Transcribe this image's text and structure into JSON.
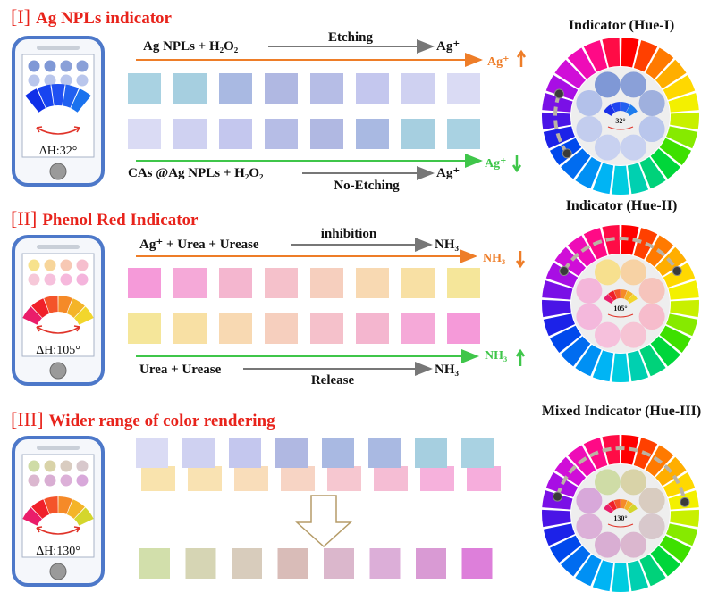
{
  "sections": [
    {
      "numeral": "[I]",
      "title": "Ag NPLs indicator",
      "phone_readout": "ΔH:32°",
      "phone_dot_colors": [
        "#7f98d6",
        "#7f98d6",
        "#8aa0d8",
        "#8aa0d8",
        "#b9c6ec",
        "#b9c6ec",
        "#b9c6ec",
        "#b9c6ec"
      ],
      "phone_fan_colors": [
        "#1030e8",
        "#1844f0",
        "#2050f2",
        "#2060f0",
        "#1a72ee"
      ],
      "top_reaction": {
        "left": "Ag NPLs + H₂O₂",
        "label": "Etching",
        "product": "Ag⁺",
        "side": "Ag⁺",
        "arrow_color": "#ee7d28"
      },
      "top_swatches": [
        "#a9d2e2",
        "#a6cfe0",
        "#a9b9e2",
        "#b0b8e2",
        "#b6bde6",
        "#c4c7ee",
        "#cfd1f1",
        "#dadbf4"
      ],
      "bottom_swatches": [
        "#dadbf4",
        "#cfd1f1",
        "#c4c7ee",
        "#b6bde6",
        "#b0b8e2",
        "#a9b9e2",
        "#a6cfe0",
        "#a9d2e2"
      ],
      "bottom_reaction": {
        "left": "CAs @Ag NPLs + H₂O₂",
        "label": "No-Etching",
        "product": "Ag⁺",
        "side": "Ag⁺",
        "arrow_color": "#3fc64a"
      }
    },
    {
      "numeral": "[II]",
      "title": "Phenol Red Indicator",
      "phone_readout": "ΔH:105°",
      "phone_dot_colors": [
        "#f7e28c",
        "#f7d59a",
        "#f7c8b4",
        "#f6bfce",
        "#f6c8d8",
        "#f6c0dc",
        "#f6b8dc",
        "#f4b4dc"
      ],
      "phone_fan_colors": [
        "#ea1d6a",
        "#f0202a",
        "#f4542a",
        "#f58a28",
        "#f4b428",
        "#f2d62c"
      ],
      "top_reaction": {
        "left": "Ag⁺ + Urea + Urease",
        "label": "inhibition",
        "product": "NH₃",
        "side": "NH₃",
        "arrow_color": "#ee7d28"
      },
      "top_swatches": [
        "#f59ad9",
        "#f5a9d8",
        "#f4b6cf",
        "#f5c1cb",
        "#f6cfbe",
        "#f8d9b2",
        "#f8e0a4",
        "#f5e69a"
      ],
      "bottom_swatches": [
        "#f5e69a",
        "#f8e0a4",
        "#f8d9b2",
        "#f6cfbe",
        "#f5c1cb",
        "#f4b6cf",
        "#f5a9d8",
        "#f59ad9"
      ],
      "bottom_reaction": {
        "left": "Urea + Urease",
        "label": "Release",
        "product": "NH₃",
        "side": "NH₃",
        "arrow_color": "#3fc64a"
      }
    },
    {
      "numeral": "[III]",
      "title": "Wider range of color rendering",
      "phone_readout": "ΔH:130°",
      "phone_dot_colors": [
        "#cfdca6",
        "#d9d3a8",
        "#d9ccc0",
        "#d8c8cc",
        "#dbb7cf",
        "#d9aed3",
        "#dcb0d8",
        "#d8a8da"
      ],
      "phone_fan_colors": [
        "#ea1d6a",
        "#f0202a",
        "#f4542a",
        "#f58a28",
        "#f4b428",
        "#d4d62c"
      ],
      "back_swatches": [
        "#dadbf4",
        "#cfd1f1",
        "#c4c7ee",
        "#b0b8e2",
        "#a9b9e2",
        "#a9b9e2",
        "#a6cfe0",
        "#a9d2e2"
      ],
      "front_swatches": [
        "#f8e0a4",
        "#f8dfaa",
        "#f8d9b2",
        "#f6cfbe",
        "#f5c1cb",
        "#f4b6cf",
        "#f5a9d8",
        "#f5a4d8"
      ],
      "mixed_swatches": [
        "#d2dfab",
        "#d6d5b4",
        "#d8ccbc",
        "#d9bcb8",
        "#dbb7cc",
        "#dcaed8",
        "#d99ad4",
        "#dd7fda"
      ]
    }
  ],
  "wheels": [
    {
      "title": "Indicator (Hue-I)",
      "angle_label": "32°",
      "inner_dot_colors": [
        "#7f98d6",
        "#8aa0d8",
        "#9fb0de",
        "#b9c6ec",
        "#c8d1f0",
        "#c8d1f0",
        "#c3cdee",
        "#b3c1ea"
      ],
      "fan_colors": [
        "#1a30e8",
        "#1e44f0",
        "#2460f0",
        "#1d7cee"
      ]
    },
    {
      "title": "Indicator (Hue-II)",
      "angle_label": "105°",
      "inner_dot_colors": [
        "#f7e08e",
        "#f7d2a4",
        "#f6c4bc",
        "#f6bccc",
        "#f6c4d4",
        "#f6c0dc",
        "#f4b8dc",
        "#f4b6da"
      ],
      "fan_colors": [
        "#ea1d6a",
        "#f0202a",
        "#f4542a",
        "#f58a28",
        "#f4b428",
        "#f2d62c"
      ]
    },
    {
      "title": "Mixed Indicator (Hue-III)",
      "angle_label": "130°",
      "inner_dot_colors": [
        "#cfdca6",
        "#d9d3a8",
        "#d9ccc0",
        "#d8c8cc",
        "#dbb7cf",
        "#d9aed3",
        "#dcb0d8",
        "#d8a8da"
      ],
      "fan_colors": [
        "#ea1d6a",
        "#f0202a",
        "#f4542a",
        "#f58a28",
        "#f4b428",
        "#d4d62c"
      ]
    }
  ],
  "palette": {
    "title_red": "#e8231b",
    "orange": "#ee7d28",
    "green": "#3fc64a",
    "phone_frame": "#4d78c9",
    "wheel_hues": [
      "#ff0000",
      "#ff4000",
      "#ff7a00",
      "#ffae00",
      "#ffd800",
      "#f3f000",
      "#c8f000",
      "#86ea00",
      "#3ee000",
      "#00d63a",
      "#00d27a",
      "#00d0b0",
      "#00cce0",
      "#00b4f4",
      "#0090f4",
      "#006cf0",
      "#0048ec",
      "#1c22e8",
      "#4a14e6",
      "#7a10e6",
      "#a80ee4",
      "#d00ed8",
      "#ee0cb8",
      "#ff0a86",
      "#ff0c46"
    ]
  }
}
